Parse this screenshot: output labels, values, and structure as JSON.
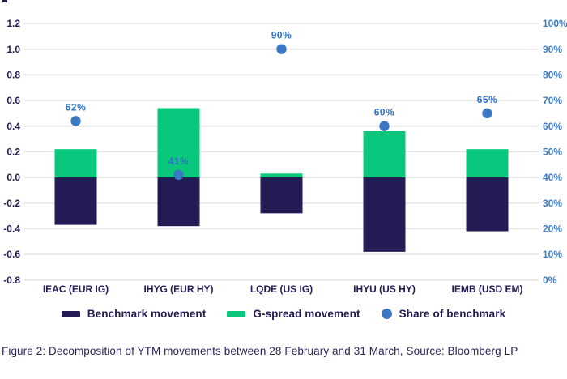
{
  "figure": {
    "caption": "Figure 2: Decomposition of YTM movements between 28 February and 31 March, Source: Bloomberg LP"
  },
  "chart_data": {
    "type": "combo-stacked-bar-scatter",
    "title": "",
    "categories": [
      "IEAC (EUR IG)",
      "IHYG (EUR HY)",
      "LQDE (US IG)",
      "IHYU (US HY)",
      "IEMB (USD EM)"
    ],
    "series": [
      {
        "name": "Benchmark movement",
        "type": "bar",
        "axis": "left",
        "color": "#221b54",
        "values": [
          -0.37,
          -0.38,
          -0.28,
          -0.58,
          -0.42
        ]
      },
      {
        "name": "G-spread movement",
        "type": "bar",
        "axis": "left",
        "color": "#09c87d",
        "values": [
          0.22,
          0.54,
          0.03,
          0.36,
          0.22
        ]
      },
      {
        "name": "Share of benchmark",
        "type": "scatter",
        "axis": "right",
        "color": "#3b78c3",
        "values": [
          62,
          41,
          90,
          60,
          65
        ],
        "point_labels": [
          "62%",
          "41%",
          "90%",
          "60%",
          "65%"
        ]
      }
    ],
    "left_axis": {
      "min": -0.8,
      "max": 1.2,
      "step": 0.2,
      "tick_labels": [
        "1.2",
        "1.0",
        "0.8",
        "0.6",
        "0.4",
        "0.2",
        "0.0",
        "-0.2",
        "-0.4",
        "-0.6",
        "-0.8"
      ]
    },
    "right_axis": {
      "min": 0,
      "max": 100,
      "step": 10,
      "tick_labels": [
        "100%",
        "90%",
        "80%",
        "70%",
        "60%",
        "50%",
        "40%",
        "30%",
        "20%",
        "10%",
        "0%"
      ]
    },
    "grid": true,
    "legend_position": "bottom",
    "colors": {
      "grid": "#e3e3e3",
      "left_tick_text": "#221c55",
      "right_tick_text": "#3d7cc9",
      "category_text": "#221c55",
      "point_label_text": "#2e71c4",
      "caption_text": "#2b2558"
    }
  }
}
